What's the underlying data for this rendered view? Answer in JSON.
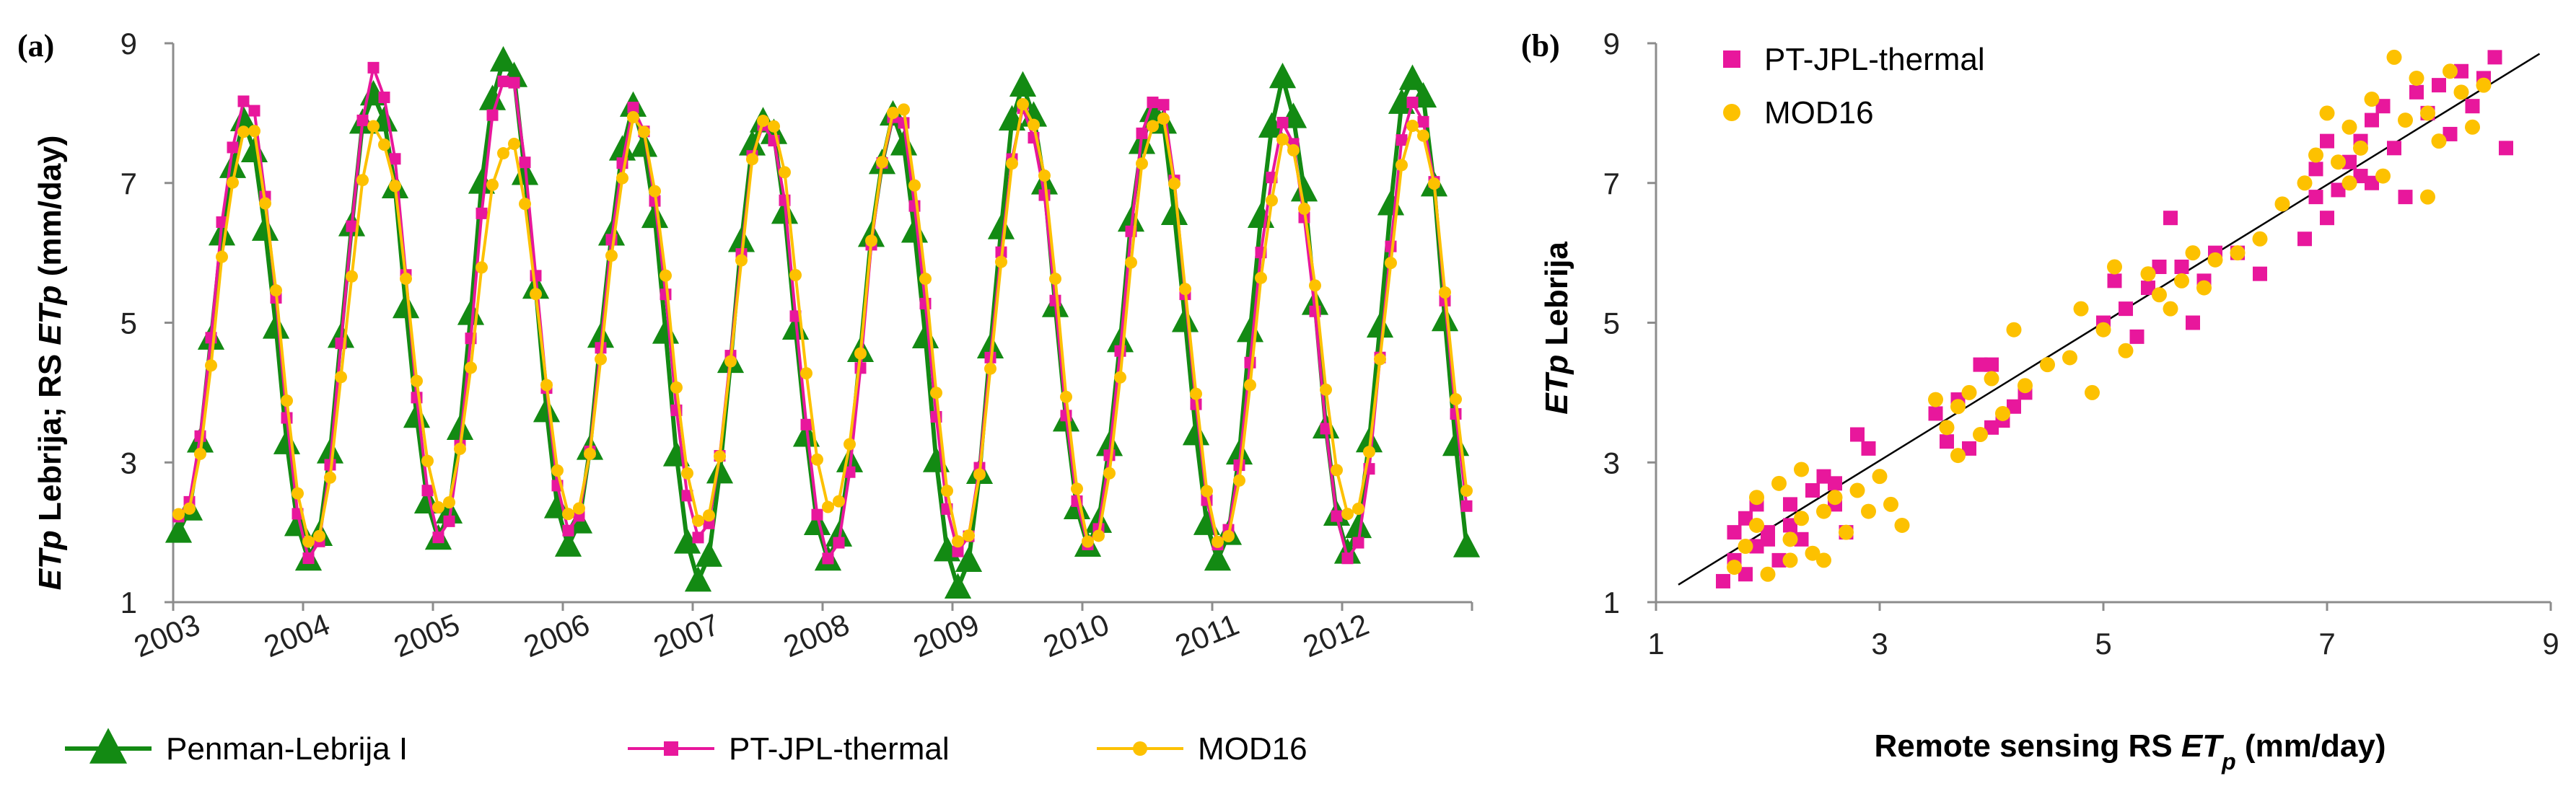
{
  "colors": {
    "penman": "#138a13",
    "ptjpl": "#e8179c",
    "mod16": "#fdc100",
    "axis": "#8c8c8c",
    "fit_line": "#000000"
  },
  "chart_data": [
    {
      "type": "line",
      "panel_label": "(a)",
      "ylabel": {
        "part1": "ETp",
        "part2": " Lebrija; RS ",
        "part3": "ETp",
        "part4": " (mm/day)"
      },
      "xlabel": "",
      "ylim": [
        1,
        9
      ],
      "yticks": [
        1,
        3,
        5,
        7,
        9
      ],
      "x_unit": "year",
      "xlim": [
        2003,
        2013
      ],
      "xticks": [
        {
          "x": 2003,
          "label": "2003"
        },
        {
          "x": 2004,
          "label": "2004"
        },
        {
          "x": 2005,
          "label": "2005"
        },
        {
          "x": 2006,
          "label": "2006"
        },
        {
          "x": 2007,
          "label": "2007"
        },
        {
          "x": 2008,
          "label": "2008"
        },
        {
          "x": 2009,
          "label": "2009"
        },
        {
          "x": 2010,
          "label": "2010"
        },
        {
          "x": 2011,
          "label": "2011"
        },
        {
          "x": 2012,
          "label": "2012"
        }
      ],
      "grid": false,
      "legend_position": "bottom",
      "series": [
        {
          "name": "Penman-Lebrija I",
          "color_key": "penman",
          "marker": "triangle",
          "yearly_peaks": [
            7.8,
            8.3,
            8.8,
            8.0,
            8.0,
            7.9,
            8.4,
            8.1,
            8.4,
            8.6
          ],
          "yearly_troughs": [
            2.0,
            1.6,
            1.9,
            1.8,
            1.3,
            1.6,
            1.2,
            1.8,
            1.6,
            1.7,
            1.2
          ]
        },
        {
          "name": "PT-JPL-thermal",
          "color_key": "ptjpl",
          "marker": "square",
          "yearly_peaks": [
            8.2,
            8.6,
            8.6,
            8.0,
            7.9,
            8.0,
            8.0,
            8.3,
            7.8,
            8.2
          ],
          "yearly_troughs": [
            2.2,
            1.6,
            1.9,
            2.0,
            1.9,
            1.6,
            1.7,
            1.8,
            1.8,
            1.6,
            1.7
          ]
        },
        {
          "name": "MOD16",
          "color_key": "mod16",
          "marker": "circle",
          "yearly_peaks": [
            7.8,
            7.8,
            7.6,
            7.9,
            8.0,
            8.1,
            8.1,
            8.0,
            7.6,
            7.9
          ],
          "yearly_troughs": [
            2.2,
            1.8,
            2.3,
            2.2,
            2.1,
            2.3,
            1.8,
            1.8,
            1.8,
            2.2,
            1.8
          ]
        }
      ]
    },
    {
      "type": "scatter",
      "panel_label": "(b)",
      "xlabel": {
        "part1": "Remote sensing RS ",
        "part2": "ET",
        "part3": "p",
        "part4": " (mm/day)"
      },
      "ylabel": {
        "part1": "ETp",
        "part2": " Lebrija"
      },
      "xlim": [
        1,
        9
      ],
      "ylim": [
        1,
        9
      ],
      "xticks": [
        1,
        3,
        5,
        7,
        9
      ],
      "yticks": [
        1,
        3,
        5,
        7,
        9
      ],
      "grid": false,
      "legend_position": "top-left",
      "fit_line": {
        "x": [
          1.2,
          8.9
        ],
        "y": [
          1.25,
          8.85
        ]
      },
      "series": [
        {
          "name": "PT-JPL-thermal",
          "color_key": "ptjpl",
          "marker": "square",
          "points": [
            [
              1.6,
              1.3
            ],
            [
              1.7,
              1.6
            ],
            [
              1.8,
              1.4
            ],
            [
              1.9,
              1.8
            ],
            [
              1.7,
              2.0
            ],
            [
              2.0,
              1.9
            ],
            [
              2.1,
              1.6
            ],
            [
              1.8,
              2.2
            ],
            [
              2.2,
              2.1
            ],
            [
              2.3,
              1.9
            ],
            [
              1.9,
              2.4
            ],
            [
              2.4,
              2.6
            ],
            [
              2.5,
              2.8
            ],
            [
              2.6,
              2.4
            ],
            [
              2.7,
              2.0
            ],
            [
              2.8,
              3.4
            ],
            [
              2.9,
              3.2
            ],
            [
              2.6,
              2.7
            ],
            [
              2.2,
              2.4
            ],
            [
              2.0,
              2.0
            ],
            [
              3.5,
              3.7
            ],
            [
              3.7,
              3.9
            ],
            [
              3.9,
              4.4
            ],
            [
              4.0,
              4.4
            ],
            [
              4.1,
              3.6
            ],
            [
              4.2,
              3.8
            ],
            [
              4.3,
              4.0
            ],
            [
              3.8,
              3.2
            ],
            [
              3.6,
              3.3
            ],
            [
              4.0,
              3.5
            ],
            [
              5.0,
              5.0
            ],
            [
              5.2,
              5.2
            ],
            [
              5.4,
              5.5
            ],
            [
              5.6,
              6.5
            ],
            [
              5.7,
              5.8
            ],
            [
              5.8,
              5.0
            ],
            [
              5.5,
              5.8
            ],
            [
              6.0,
              6.0
            ],
            [
              6.2,
              6.0
            ],
            [
              5.3,
              4.8
            ],
            [
              5.9,
              5.6
            ],
            [
              5.1,
              5.6
            ],
            [
              6.4,
              5.7
            ],
            [
              6.8,
              6.2
            ],
            [
              6.9,
              6.8
            ],
            [
              7.0,
              7.6
            ],
            [
              7.1,
              6.9
            ],
            [
              7.2,
              7.3
            ],
            [
              7.3,
              7.6
            ],
            [
              7.4,
              7.9
            ],
            [
              7.5,
              8.1
            ],
            [
              7.6,
              7.5
            ],
            [
              7.7,
              6.8
            ],
            [
              7.8,
              8.3
            ],
            [
              7.9,
              8.0
            ],
            [
              8.0,
              8.4
            ],
            [
              8.1,
              7.7
            ],
            [
              8.2,
              8.6
            ],
            [
              8.3,
              8.1
            ],
            [
              8.4,
              8.5
            ],
            [
              8.5,
              8.8
            ],
            [
              8.6,
              7.5
            ],
            [
              7.0,
              6.5
            ],
            [
              7.3,
              7.1
            ],
            [
              6.9,
              7.2
            ],
            [
              7.4,
              7.0
            ]
          ]
        },
        {
          "name": "MOD16",
          "color_key": "mod16",
          "marker": "circle",
          "points": [
            [
              1.7,
              1.5
            ],
            [
              1.8,
              1.8
            ],
            [
              1.9,
              2.1
            ],
            [
              2.0,
              1.4
            ],
            [
              2.1,
              2.7
            ],
            [
              2.2,
              1.9
            ],
            [
              2.3,
              2.2
            ],
            [
              2.4,
              1.7
            ],
            [
              2.5,
              2.3
            ],
            [
              2.6,
              2.5
            ],
            [
              2.7,
              2.0
            ],
            [
              2.8,
              2.6
            ],
            [
              2.9,
              2.3
            ],
            [
              3.0,
              2.8
            ],
            [
              3.1,
              2.4
            ],
            [
              3.2,
              2.1
            ],
            [
              2.3,
              2.9
            ],
            [
              2.5,
              1.6
            ],
            [
              1.9,
              2.5
            ],
            [
              2.2,
              1.6
            ],
            [
              3.5,
              3.9
            ],
            [
              3.6,
              3.5
            ],
            [
              3.7,
              3.8
            ],
            [
              3.8,
              4.0
            ],
            [
              3.9,
              3.4
            ],
            [
              4.0,
              4.2
            ],
            [
              4.1,
              3.7
            ],
            [
              4.3,
              4.1
            ],
            [
              4.5,
              4.4
            ],
            [
              4.7,
              4.5
            ],
            [
              4.8,
              5.2
            ],
            [
              4.9,
              4.0
            ],
            [
              3.7,
              3.1
            ],
            [
              4.2,
              4.9
            ],
            [
              5.0,
              4.9
            ],
            [
              5.1,
              5.8
            ],
            [
              5.2,
              4.6
            ],
            [
              5.4,
              5.7
            ],
            [
              5.5,
              5.4
            ],
            [
              5.6,
              5.2
            ],
            [
              5.7,
              5.6
            ],
            [
              5.8,
              6.0
            ],
            [
              5.9,
              5.5
            ],
            [
              6.0,
              5.9
            ],
            [
              6.2,
              6.0
            ],
            [
              6.4,
              6.2
            ],
            [
              6.6,
              6.7
            ],
            [
              6.8,
              7.0
            ],
            [
              6.9,
              7.4
            ],
            [
              7.0,
              8.0
            ],
            [
              7.1,
              7.3
            ],
            [
              7.2,
              7.8
            ],
            [
              7.3,
              7.5
            ],
            [
              7.4,
              8.2
            ],
            [
              7.5,
              7.1
            ],
            [
              7.6,
              8.8
            ],
            [
              7.7,
              7.9
            ],
            [
              7.8,
              8.5
            ],
            [
              7.9,
              8.0
            ],
            [
              8.0,
              7.6
            ],
            [
              8.1,
              8.6
            ],
            [
              8.2,
              8.3
            ],
            [
              8.3,
              7.8
            ],
            [
              8.4,
              8.4
            ],
            [
              7.9,
              6.8
            ],
            [
              7.2,
              7.0
            ]
          ]
        }
      ]
    }
  ]
}
